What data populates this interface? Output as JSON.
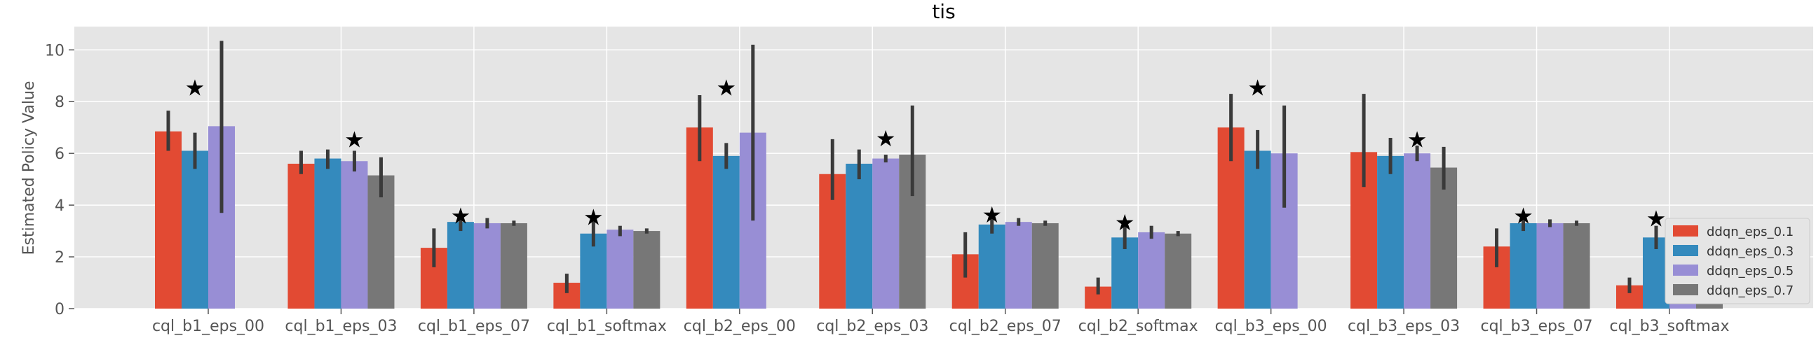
{
  "chart_data": {
    "type": "bar",
    "title": "tis",
    "xlabel": "",
    "ylabel": "Estimated Policy Value",
    "ylim": [
      0,
      10.9
    ],
    "yticks": [
      0,
      2,
      4,
      6,
      8,
      10
    ],
    "grid": true,
    "legend_position": "lower-right",
    "categories": [
      "cql_b1_eps_00",
      "cql_b1_eps_03",
      "cql_b1_eps_07",
      "cql_b1_softmax",
      "cql_b2_eps_00",
      "cql_b2_eps_03",
      "cql_b2_eps_07",
      "cql_b2_softmax",
      "cql_b3_eps_00",
      "cql_b3_eps_03",
      "cql_b3_eps_07",
      "cql_b3_softmax"
    ],
    "series": [
      {
        "name": "ddqn_eps_0.1",
        "color": "#e24a33",
        "values": [
          6.85,
          5.6,
          2.35,
          1.0,
          7.0,
          5.2,
          2.1,
          0.85,
          7.0,
          6.05,
          2.4,
          0.9
        ],
        "err_low": [
          6.1,
          5.2,
          1.6,
          0.6,
          5.7,
          4.2,
          1.2,
          0.55,
          5.7,
          4.7,
          1.6,
          0.6
        ],
        "err_high": [
          7.65,
          6.1,
          3.1,
          1.35,
          8.25,
          6.55,
          2.95,
          1.2,
          8.3,
          8.3,
          3.1,
          1.2
        ]
      },
      {
        "name": "ddqn_eps_0.3",
        "color": "#348abd",
        "values": [
          6.1,
          5.8,
          3.35,
          2.9,
          5.9,
          5.6,
          3.25,
          2.75,
          6.1,
          5.9,
          3.3,
          2.75
        ],
        "err_low": [
          5.4,
          5.4,
          3.0,
          2.4,
          5.4,
          5.0,
          2.9,
          2.3,
          5.4,
          5.2,
          3.0,
          2.3
        ],
        "err_high": [
          6.8,
          6.15,
          3.65,
          3.45,
          6.4,
          6.15,
          3.5,
          3.2,
          6.9,
          6.6,
          3.6,
          3.2
        ]
      },
      {
        "name": "ddqn_eps_0.5",
        "color": "#988ed5",
        "values": [
          7.05,
          5.7,
          3.3,
          3.05,
          6.8,
          5.8,
          3.35,
          2.95,
          6.0,
          6.0,
          3.3,
          2.9
        ],
        "err_low": [
          3.7,
          5.3,
          3.1,
          2.8,
          3.4,
          5.65,
          3.2,
          2.7,
          3.9,
          5.7,
          3.15,
          2.65
        ],
        "err_high": [
          10.35,
          6.1,
          3.5,
          3.2,
          10.2,
          5.95,
          3.5,
          3.2,
          7.85,
          6.3,
          3.45,
          3.2
        ]
      },
      {
        "name": "ddqn_eps_0.7",
        "color": "#777777",
        "values": [
          0,
          5.15,
          3.3,
          3.0,
          0,
          5.95,
          3.3,
          2.9,
          0,
          5.45,
          3.3,
          2.9
        ],
        "err_low": [
          0,
          4.3,
          3.2,
          2.9,
          0,
          4.35,
          3.2,
          2.8,
          0,
          4.6,
          3.2,
          2.8
        ],
        "err_high": [
          0,
          5.85,
          3.4,
          3.1,
          0,
          7.85,
          3.4,
          3.0,
          0,
          6.25,
          3.4,
          3.0
        ]
      }
    ],
    "stars": [
      {
        "category_index": 0,
        "series_index": 1,
        "y": 8.5
      },
      {
        "category_index": 1,
        "series_index": 2,
        "y": 6.5
      },
      {
        "category_index": 2,
        "series_index": 1,
        "y": 3.55
      },
      {
        "category_index": 3,
        "series_index": 1,
        "y": 3.5
      },
      {
        "category_index": 4,
        "series_index": 1,
        "y": 8.5
      },
      {
        "category_index": 5,
        "series_index": 2,
        "y": 6.55
      },
      {
        "category_index": 6,
        "series_index": 1,
        "y": 3.6
      },
      {
        "category_index": 7,
        "series_index": 1,
        "y": 3.3
      },
      {
        "category_index": 8,
        "series_index": 1,
        "y": 8.5
      },
      {
        "category_index": 9,
        "series_index": 2,
        "y": 6.5
      },
      {
        "category_index": 10,
        "series_index": 1,
        "y": 3.55
      },
      {
        "category_index": 11,
        "series_index": 1,
        "y": 3.45
      }
    ],
    "star_glyph": "★"
  }
}
